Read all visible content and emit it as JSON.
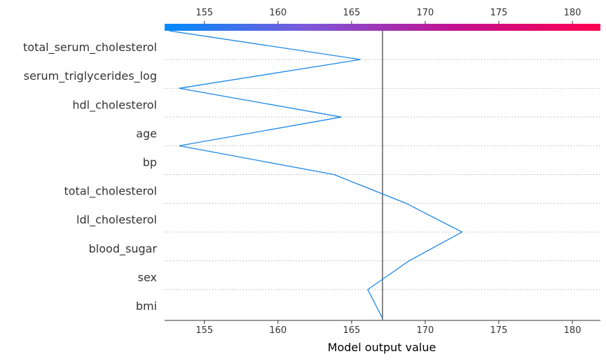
{
  "chart_data": {
    "type": "line",
    "subtype": "decision_plot",
    "xlabel": "Model output value",
    "xlim": [
      152.3,
      181.9
    ],
    "x_ticks": [
      155,
      160,
      165,
      170,
      175,
      180
    ],
    "base_value": 167.1,
    "colorbar": {
      "position": "top",
      "colors": [
        "#008bfb",
        "#7e57d8",
        "#c1108f",
        "#ff0051"
      ]
    },
    "line_color": "#1e88e5",
    "reference_line_color": "#888888",
    "features": [
      "total_serum_cholesterol",
      "serum_triglycerides_log",
      "hdl_cholesterol",
      "age",
      "bp",
      "total_cholesterol",
      "ldl_cholesterol",
      "blood_sugar",
      "sex",
      "bmi"
    ],
    "path": [
      {
        "level": "top",
        "value": 152.6
      },
      {
        "feature": "total_serum_cholesterol",
        "value": 165.6
      },
      {
        "feature": "serum_triglycerides_log",
        "value": 153.3
      },
      {
        "feature": "hdl_cholesterol",
        "value": 164.3
      },
      {
        "feature": "age",
        "value": 153.3
      },
      {
        "feature": "bp",
        "value": 163.8
      },
      {
        "feature": "total_cholesterol",
        "value": 168.7
      },
      {
        "feature": "ldl_cholesterol",
        "value": 172.5
      },
      {
        "feature": "blood_sugar",
        "value": 168.9
      },
      {
        "feature": "sex",
        "value": 166.1
      },
      {
        "feature": "bmi",
        "value": 167.1
      }
    ],
    "grid": "dotted row separators"
  }
}
